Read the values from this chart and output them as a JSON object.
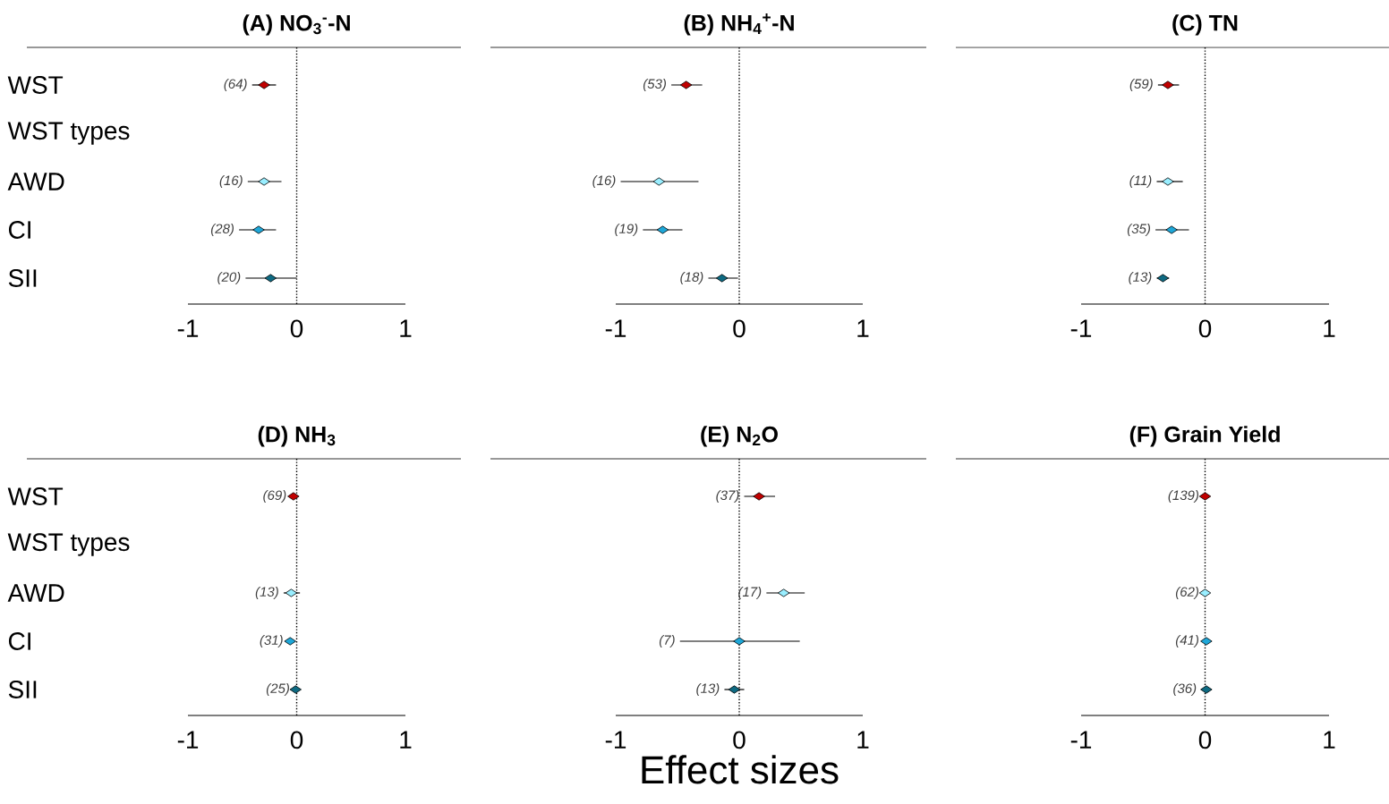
{
  "chart_data": [
    {
      "type": "scatter",
      "orientation": "horizontal",
      "marker": "diamond",
      "title": "(A)  NO$_{3}$$^{-}$-N",
      "categories": [
        "WST",
        "WST types",
        "AWD",
        "CI",
        "SII"
      ],
      "values": [
        -0.3,
        null,
        -0.3,
        -0.35,
        -0.24
      ],
      "errors": [
        [
          -0.41,
          -0.19
        ],
        null,
        [
          -0.45,
          -0.14
        ],
        [
          -0.53,
          -0.19
        ],
        [
          -0.47,
          0.0
        ]
      ],
      "colors": [
        "#c00000",
        null,
        "#99eeff",
        "#1ea7d8",
        "#0e6a82"
      ],
      "xlim": [
        -1,
        1
      ],
      "xticks": [
        -1,
        0,
        1
      ],
      "ref_lines": [
        {
          "axis": "x",
          "value": 0,
          "line_style": "dotted",
          "color": "#000000"
        }
      ],
      "annotations": [
        {
          "text": "(64)",
          "x": -0.3,
          "y": "WST"
        },
        {
          "text": "(16)",
          "x": -0.3,
          "y": "AWD"
        },
        {
          "text": "(28)",
          "x": -0.35,
          "y": "CI"
        },
        {
          "text": "(20)",
          "x": -0.24,
          "y": "SII"
        }
      ]
    },
    {
      "type": "scatter",
      "orientation": "horizontal",
      "marker": "diamond",
      "title": "(B)  NH$_{4}$$^{+}$-N",
      "tick_labels": "x",
      "categories": [
        "WST",
        "WST types",
        "AWD",
        "CI",
        "SII"
      ],
      "values": [
        -0.43,
        null,
        -0.65,
        -0.62,
        -0.14
      ],
      "errors": [
        [
          -0.55,
          -0.3
        ],
        null,
        [
          -0.96,
          -0.33
        ],
        [
          -0.78,
          -0.46
        ],
        [
          -0.25,
          -0.01
        ]
      ],
      "colors": [
        "#c00000",
        null,
        "#99eeff",
        "#1ea7d8",
        "#0e6a82"
      ],
      "xlim": [
        -1,
        1
      ],
      "xticks": [
        -1,
        0,
        1
      ],
      "ref_lines": [
        {
          "axis": "x",
          "value": 0,
          "line_style": "dotted",
          "color": "#000000"
        }
      ],
      "annotations": [
        {
          "text": "(53)",
          "x": -0.43,
          "y": "WST"
        },
        {
          "text": "(16)",
          "x": -0.96,
          "y": "AWD"
        },
        {
          "text": "(19)",
          "x": -0.62,
          "y": "CI"
        },
        {
          "text": "(18)",
          "x": -0.14,
          "y": "SII"
        }
      ]
    },
    {
      "type": "scatter",
      "orientation": "horizontal",
      "marker": "diamond",
      "title": "(C)  TN",
      "tick_labels": "x",
      "categories": [
        "WST",
        "WST types",
        "AWD",
        "CI",
        "SII"
      ],
      "values": [
        -0.3,
        null,
        -0.3,
        -0.27,
        -0.34
      ],
      "errors": [
        [
          -0.38,
          -0.21
        ],
        null,
        [
          -0.39,
          -0.18
        ],
        [
          -0.4,
          -0.13
        ],
        [
          -0.39,
          -0.29
        ]
      ],
      "colors": [
        "#c00000",
        null,
        "#99eeff",
        "#1ea7d8",
        "#0e6a82"
      ],
      "xlim": [
        -1,
        1
      ],
      "xticks": [
        -1,
        0,
        1
      ],
      "ref_lines": [
        {
          "axis": "x",
          "value": 0,
          "line_style": "dotted",
          "color": "#000000"
        }
      ],
      "annotations": [
        {
          "text": "(59)",
          "x": -0.3,
          "y": "WST"
        },
        {
          "text": "(11)",
          "x": -0.3,
          "y": "AWD"
        },
        {
          "text": "(35)",
          "x": -0.27,
          "y": "CI"
        },
        {
          "text": "(13)",
          "x": -0.34,
          "y": "SII"
        }
      ]
    },
    {
      "type": "scatter",
      "orientation": "horizontal",
      "marker": "diamond",
      "title": "(D)  NH$_{3}$",
      "categories": [
        "WST",
        "WST types",
        "AWD",
        "CI",
        "SII"
      ],
      "values": [
        -0.03,
        null,
        -0.05,
        -0.06,
        -0.01
      ],
      "errors": [
        [
          -0.05,
          -0.01
        ],
        null,
        [
          -0.12,
          0.03
        ],
        [
          -0.08,
          -0.03
        ],
        [
          -0.02,
          0.0
        ]
      ],
      "colors": [
        "#c00000",
        null,
        "#99eeff",
        "#1ea7d8",
        "#0e6a82"
      ],
      "xlim": [
        -1,
        1
      ],
      "xticks": [
        -1,
        0,
        1
      ],
      "ref_lines": [
        {
          "axis": "x",
          "value": 0,
          "line_style": "dotted",
          "color": "#000000"
        }
      ],
      "annotations": [
        {
          "text": "(69)",
          "x": -0.03,
          "y": "WST"
        },
        {
          "text": "(13)",
          "x": -0.05,
          "y": "AWD"
        },
        {
          "text": "(31)",
          "x": -0.06,
          "y": "CI"
        },
        {
          "text": "(25)",
          "x": -0.01,
          "y": "SII"
        }
      ]
    },
    {
      "type": "scatter",
      "orientation": "horizontal",
      "marker": "diamond",
      "title": "(E)  N$_{2}$O",
      "xlabel": "Effect sizes",
      "tick_labels": "x",
      "categories": [
        "WST",
        "WST types",
        "AWD",
        "CI",
        "SII"
      ],
      "values": [
        0.16,
        null,
        0.36,
        0.0,
        -0.04
      ],
      "errors": [
        [
          0.04,
          0.29
        ],
        null,
        [
          0.22,
          0.53
        ],
        [
          -0.48,
          0.49
        ],
        [
          -0.12,
          0.04
        ]
      ],
      "colors": [
        "#c00000",
        null,
        "#99eeff",
        "#1ea7d8",
        "#0e6a82"
      ],
      "xlim": [
        -1,
        1
      ],
      "xticks": [
        -1,
        0,
        1
      ],
      "ref_lines": [
        {
          "axis": "x",
          "value": 0,
          "line_style": "dotted",
          "color": "#000000"
        }
      ],
      "annotations": [
        {
          "text": "(37)",
          "x": 0.16,
          "y": "WST"
        },
        {
          "text": "(17)",
          "x": 0.36,
          "y": "AWD"
        },
        {
          "text": "(7)",
          "x": -0.48,
          "y": "CI"
        },
        {
          "text": "(13)",
          "x": -0.04,
          "y": "SII"
        }
      ]
    },
    {
      "type": "scatter",
      "orientation": "horizontal",
      "marker": "diamond",
      "title": "(F)  Grain Yield",
      "tick_labels": "x",
      "categories": [
        "WST",
        "WST types",
        "AWD",
        "CI",
        "SII"
      ],
      "values": [
        0.0,
        null,
        0.0,
        0.01,
        0.01
      ],
      "errors": [
        [
          -0.01,
          0.01
        ],
        null,
        [
          -0.01,
          0.02
        ],
        [
          -0.01,
          0.03
        ],
        [
          -0.03,
          0.05
        ]
      ],
      "colors": [
        "#c00000",
        null,
        "#99eeff",
        "#1ea7d8",
        "#0e6a82"
      ],
      "xlim": [
        -1,
        1
      ],
      "xticks": [
        -1,
        0,
        1
      ],
      "ref_lines": [
        {
          "axis": "x",
          "value": 0,
          "line_style": "dotted",
          "color": "#000000"
        }
      ],
      "annotations": [
        {
          "text": "(139)",
          "x": 0.0,
          "y": "WST"
        },
        {
          "text": "(62)",
          "x": 0.0,
          "y": "AWD"
        },
        {
          "text": "(41)",
          "x": 0.01,
          "y": "CI"
        },
        {
          "text": "(36)",
          "x": 0.01,
          "y": "SII"
        }
      ]
    }
  ]
}
